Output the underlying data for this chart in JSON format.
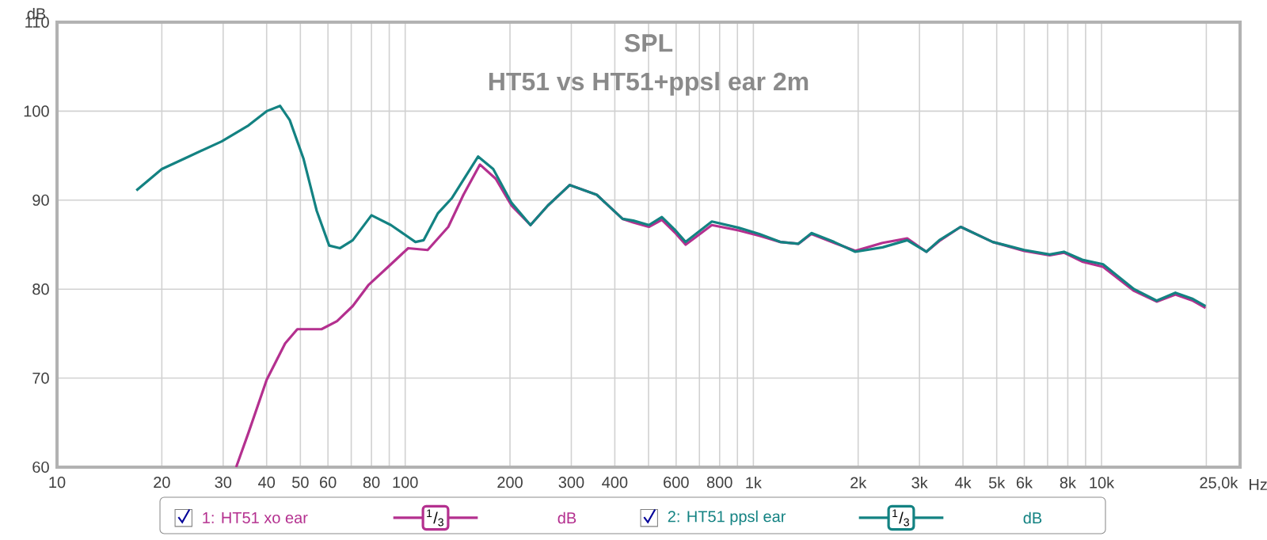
{
  "chart_data": {
    "type": "line",
    "title": "SPL",
    "subtitle": "HT51 vs HT51+ppsl  ear 2m",
    "ylabel": "dB",
    "xlabel": "Hz",
    "log": "x",
    "grid": true,
    "legend": "bottom",
    "line_style": "solid",
    "xlim": [
      10,
      25000
    ],
    "ylim": [
      60,
      110
    ],
    "xticks": [
      10,
      20,
      30,
      40,
      50,
      60,
      {
        "value": 70,
        "label": null
      },
      80,
      {
        "value": 90,
        "label": null
      },
      100,
      200,
      300,
      400,
      {
        "value": 500,
        "label": null
      },
      600,
      {
        "value": 700,
        "label": null
      },
      800,
      {
        "value": 900,
        "label": null
      },
      {
        "value": 1000,
        "label": "1k"
      },
      {
        "value": 2000,
        "label": "2k"
      },
      {
        "value": 3000,
        "label": "3k"
      },
      {
        "value": 4000,
        "label": "4k"
      },
      {
        "value": 5000,
        "label": "5k"
      },
      {
        "value": 6000,
        "label": "6k"
      },
      {
        "value": 7000,
        "label": null
      },
      {
        "value": 8000,
        "label": "8k"
      },
      {
        "value": 9000,
        "label": null
      },
      {
        "value": 10000,
        "label": "10k"
      },
      {
        "value": 20000,
        "label": null
      },
      {
        "value": 25000,
        "label": "25,0k"
      }
    ],
    "yticks": [
      60,
      70,
      80,
      90,
      100,
      110
    ],
    "series": [
      {
        "name": "1: HT51 xo ear",
        "color": "#b4308f",
        "x": [
          32.7,
          35.5,
          40,
          45.2,
          49,
          57.5,
          63.7,
          70.7,
          78.6,
          91,
          102,
          116,
          133,
          147,
          164,
          182,
          202,
          229,
          257,
          297,
          355,
          421,
          452,
          501,
          546,
          594,
          639,
          760,
          907,
          1040,
          1195,
          1347,
          1468,
          1706,
          1963,
          2350,
          2766,
          3140,
          3420,
          3940,
          4870,
          6000,
          7100,
          7800,
          8800,
          10100,
          12400,
          14400,
          16300,
          18300,
          19900
        ],
        "values": [
          60,
          63.9,
          69.8,
          73.9,
          75.5,
          75.5,
          76.4,
          78.1,
          80.5,
          82.8,
          84.6,
          84.4,
          87.0,
          90.6,
          94.0,
          92.4,
          89.4,
          87.2,
          89.4,
          91.7,
          90.6,
          87.9,
          87.5,
          87.0,
          87.8,
          86.4,
          85.0,
          87.2,
          86.6,
          86.0,
          85.3,
          85.1,
          86.2,
          85.2,
          84.3,
          85.2,
          85.7,
          84.2,
          85.4,
          87.0,
          85.3,
          84.3,
          83.8,
          84.1,
          83.1,
          82.5,
          79.8,
          78.6,
          79.4,
          78.7,
          77.9
        ]
      },
      {
        "name": "2: HT51 ppsl ear",
        "color": "#138282",
        "x": [
          16.9,
          20,
          23.3,
          29.7,
          35.5,
          40,
          43.7,
          46.6,
          51,
          55.7,
          60.5,
          65,
          70.7,
          80,
          91,
          107,
          113,
          124,
          136,
          162,
          179,
          202,
          229,
          257,
          297,
          355,
          421,
          452,
          501,
          546,
          594,
          639,
          760,
          907,
          1040,
          1195,
          1347,
          1468,
          1706,
          1963,
          2350,
          2766,
          3140,
          3420,
          3940,
          4870,
          6000,
          7100,
          7800,
          8800,
          10100,
          12400,
          14400,
          16300,
          18300,
          19900
        ],
        "values": [
          91.1,
          93.5,
          94.7,
          96.6,
          98.4,
          100,
          100.6,
          99,
          94.7,
          88.8,
          84.9,
          84.6,
          85.5,
          88.3,
          87.2,
          85.3,
          85.5,
          88.5,
          90.2,
          94.9,
          93.5,
          89.7,
          87.2,
          89.4,
          91.7,
          90.6,
          87.9,
          87.7,
          87.2,
          88.1,
          86.7,
          85.3,
          87.6,
          86.9,
          86.2,
          85.3,
          85.1,
          86.3,
          85.3,
          84.2,
          84.7,
          85.5,
          84.2,
          85.5,
          87.0,
          85.3,
          84.4,
          83.9,
          84.2,
          83.3,
          82.8,
          80.0,
          78.7,
          79.6,
          78.9,
          78.1
        ]
      }
    ],
    "annotations": [
      "$^{1}$/$_{3}$",
      "dB",
      "$^{1}$/$_{3}$",
      "dB"
    ]
  }
}
